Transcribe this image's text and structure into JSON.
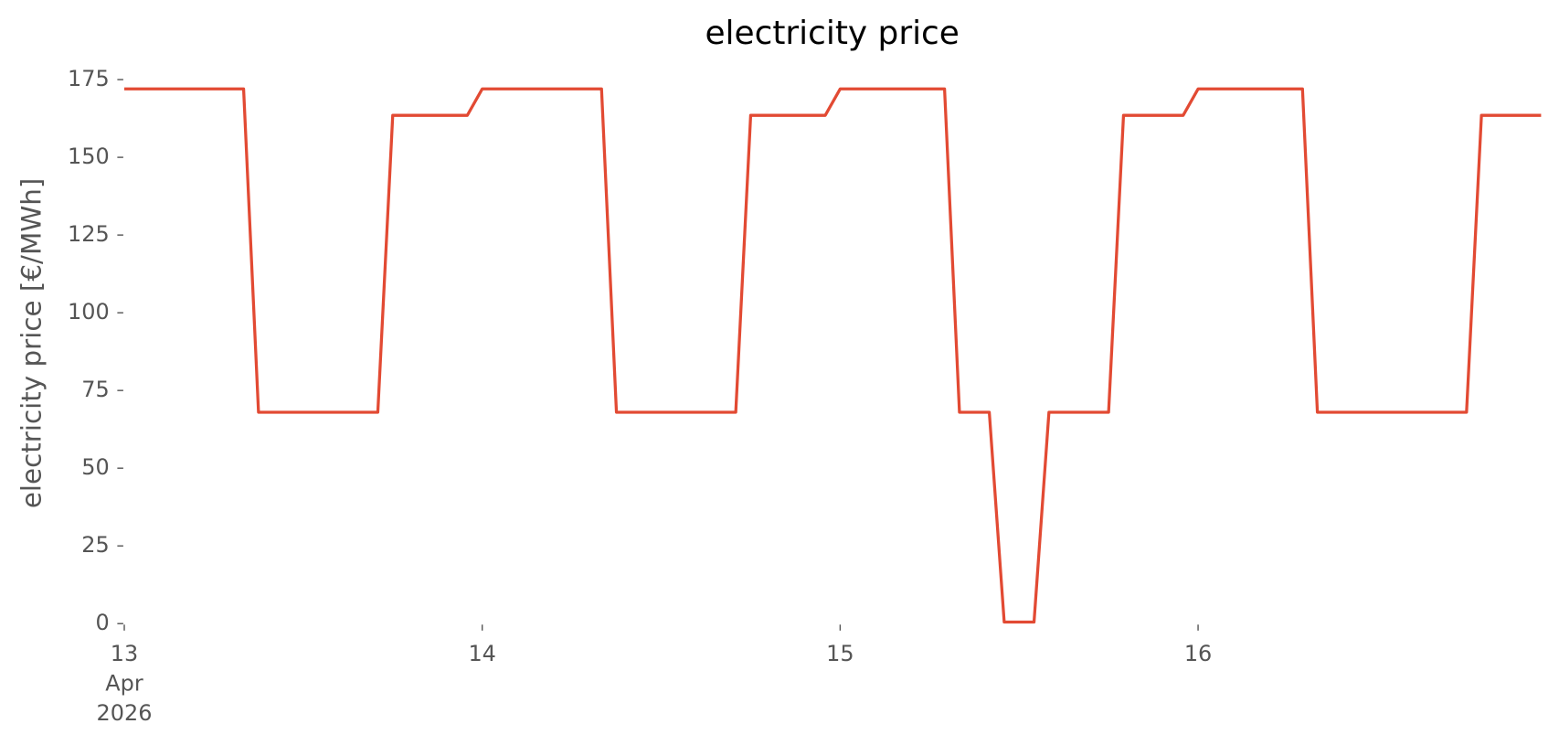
{
  "chart_data": {
    "type": "line",
    "title": "electricity price",
    "ylabel": "electricity price [€/MWh]",
    "x": [
      "2026-04-13 00:00",
      "2026-04-13 01:00",
      "2026-04-13 02:00",
      "2026-04-13 03:00",
      "2026-04-13 04:00",
      "2026-04-13 05:00",
      "2026-04-13 06:00",
      "2026-04-13 07:00",
      "2026-04-13 08:00",
      "2026-04-13 09:00",
      "2026-04-13 10:00",
      "2026-04-13 11:00",
      "2026-04-13 12:00",
      "2026-04-13 13:00",
      "2026-04-13 14:00",
      "2026-04-13 15:00",
      "2026-04-13 16:00",
      "2026-04-13 17:00",
      "2026-04-13 18:00",
      "2026-04-13 19:00",
      "2026-04-13 20:00",
      "2026-04-13 21:00",
      "2026-04-13 22:00",
      "2026-04-13 23:00",
      "2026-04-14 00:00",
      "2026-04-14 01:00",
      "2026-04-14 02:00",
      "2026-04-14 03:00",
      "2026-04-14 04:00",
      "2026-04-14 05:00",
      "2026-04-14 06:00",
      "2026-04-14 07:00",
      "2026-04-14 08:00",
      "2026-04-14 09:00",
      "2026-04-14 10:00",
      "2026-04-14 11:00",
      "2026-04-14 12:00",
      "2026-04-14 13:00",
      "2026-04-14 14:00",
      "2026-04-14 15:00",
      "2026-04-14 16:00",
      "2026-04-14 17:00",
      "2026-04-14 18:00",
      "2026-04-14 19:00",
      "2026-04-14 20:00",
      "2026-04-14 21:00",
      "2026-04-14 22:00",
      "2026-04-14 23:00",
      "2026-04-15 00:00",
      "2026-04-15 01:00",
      "2026-04-15 02:00",
      "2026-04-15 03:00",
      "2026-04-15 04:00",
      "2026-04-15 05:00",
      "2026-04-15 06:00",
      "2026-04-15 07:00",
      "2026-04-15 08:00",
      "2026-04-15 09:00",
      "2026-04-15 10:00",
      "2026-04-15 11:00",
      "2026-04-15 12:00",
      "2026-04-15 13:00",
      "2026-04-15 14:00",
      "2026-04-15 15:00",
      "2026-04-15 16:00",
      "2026-04-15 17:00",
      "2026-04-15 18:00",
      "2026-04-15 19:00",
      "2026-04-15 20:00",
      "2026-04-15 21:00",
      "2026-04-15 22:00",
      "2026-04-15 23:00",
      "2026-04-16 00:00",
      "2026-04-16 01:00",
      "2026-04-16 02:00",
      "2026-04-16 03:00",
      "2026-04-16 04:00",
      "2026-04-16 05:00",
      "2026-04-16 06:00",
      "2026-04-16 07:00",
      "2026-04-16 08:00",
      "2026-04-16 09:00",
      "2026-04-16 10:00",
      "2026-04-16 11:00",
      "2026-04-16 12:00",
      "2026-04-16 13:00",
      "2026-04-16 14:00",
      "2026-04-16 15:00",
      "2026-04-16 16:00",
      "2026-04-16 17:00",
      "2026-04-16 18:00",
      "2026-04-16 19:00",
      "2026-04-16 20:00",
      "2026-04-16 21:00",
      "2026-04-16 22:00",
      "2026-04-16 23:00"
    ],
    "series": [
      {
        "color": "#e24a33",
        "values": [
          172,
          172,
          172,
          172,
          172,
          172,
          172,
          172,
          172,
          68,
          68,
          68,
          68,
          68,
          68,
          68,
          68,
          68,
          163.5,
          163.5,
          163.5,
          163.5,
          163.5,
          163.5,
          172,
          172,
          172,
          172,
          172,
          172,
          172,
          172,
          172,
          68,
          68,
          68,
          68,
          68,
          68,
          68,
          68,
          68,
          163.5,
          163.5,
          163.5,
          163.5,
          163.5,
          163.5,
          172,
          172,
          172,
          172,
          172,
          172,
          172,
          172,
          68,
          68,
          68,
          0.5,
          0.5,
          0.5,
          68,
          68,
          68,
          68,
          68,
          163.5,
          163.5,
          163.5,
          163.5,
          163.5,
          172,
          172,
          172,
          172,
          172,
          172,
          172,
          172,
          68,
          68,
          68,
          68,
          68,
          68,
          68,
          68,
          68,
          68,
          68,
          163.5,
          163.5,
          163.5,
          163.5,
          163.5
        ]
      }
    ],
    "xlim": [
      "2026-04-13 00:00",
      "2026-04-16 23:00"
    ],
    "xticks": [
      {
        "value": "2026-04-13 00:00",
        "label": [
          "13",
          "Apr",
          "2026"
        ]
      },
      {
        "value": "2026-04-14 00:00",
        "label": [
          "14"
        ]
      },
      {
        "value": "2026-04-15 00:00",
        "label": [
          "15"
        ]
      },
      {
        "value": "2026-04-16 00:00",
        "label": [
          "16"
        ]
      }
    ],
    "ylim": [
      0,
      175
    ],
    "yticks": [
      0,
      25,
      50,
      75,
      100,
      125,
      150,
      175
    ],
    "grid": false
  }
}
